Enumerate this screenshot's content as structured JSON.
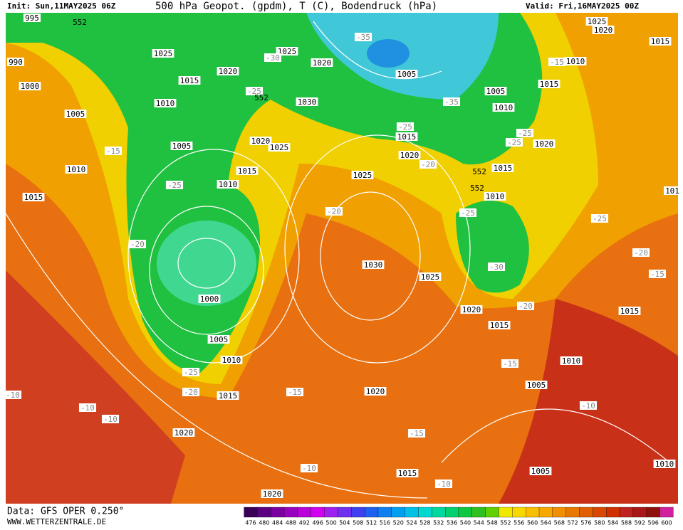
{
  "header": {
    "init": "Init: Sun,11MAY2025 06Z",
    "title": "500 hPa Geopot. (gpdm), T (C), Bodendruck (hPa)",
    "valid": "Valid: Fri,16MAY2025 00Z"
  },
  "footer": {
    "data": "Data: GFS OPER 0.250°",
    "site": "WWW.WETTERZENTRALE.DE"
  },
  "colorbar": {
    "ticks": [
      476,
      480,
      484,
      488,
      492,
      496,
      500,
      504,
      508,
      512,
      516,
      520,
      524,
      528,
      532,
      536,
      540,
      544,
      548,
      552,
      556,
      560,
      564,
      568,
      572,
      576,
      580,
      584,
      588,
      592,
      596,
      600
    ],
    "colors": [
      "#3a0058",
      "#5a0080",
      "#7a00a0",
      "#9a00c0",
      "#b800d8",
      "#d000f0",
      "#a020f0",
      "#7030f0",
      "#4040f0",
      "#2060f0",
      "#1080f0",
      "#00a0f0",
      "#00c0e8",
      "#00d8d0",
      "#00d8a0",
      "#00d070",
      "#10c840",
      "#30c020",
      "#60d000",
      "#f0e800",
      "#f8d800",
      "#f8c000",
      "#f8a800",
      "#f09000",
      "#e87800",
      "#e06000",
      "#d84800",
      "#d03000",
      "#c02020",
      "#a81818",
      "#901010",
      "#d020a0"
    ]
  },
  "pressure_labels": [
    "995",
    "990",
    "1000",
    "1005",
    "1010",
    "1015",
    "1025",
    "1020",
    "1015",
    "1010",
    "1005",
    "1010",
    "1015",
    "1020",
    "1025",
    "1025",
    "1020",
    "1030",
    "1015",
    "1020",
    "1025",
    "1005",
    "1005",
    "1010",
    "1015",
    "1010",
    "1025",
    "1020",
    "1015",
    "1020",
    "1015",
    "1010",
    "1030",
    "1025",
    "1020",
    "1015",
    "1015",
    "1010",
    "1005",
    "1020",
    "1015",
    "1005",
    "1010",
    "1020",
    "1020",
    "1015",
    "1010",
    "1005",
    "1000",
    "101"
  ],
  "temperature_labels": [
    "-35",
    "-30",
    "-25",
    "-35",
    "-25",
    "-25",
    "-25",
    "-20",
    "-15",
    "-25",
    "-20",
    "-25",
    "-25",
    "-20",
    "-20",
    "-15",
    "-30",
    "-20",
    "-15",
    "-25",
    "-20",
    "-15",
    "-10",
    "-10",
    "-10",
    "-10",
    "-15",
    "-10",
    "-10",
    "-15"
  ],
  "geopotential_labels": [
    "552",
    "552",
    "552",
    "552"
  ]
}
